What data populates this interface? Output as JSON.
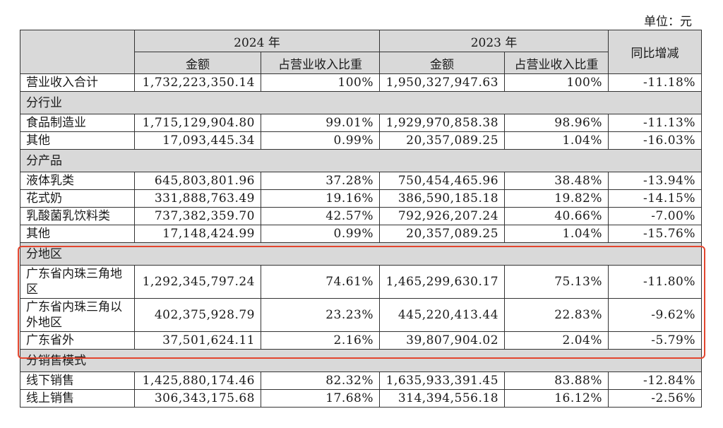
{
  "unit": "单位：元",
  "header": {
    "year_2024": "2024 年",
    "year_2023": "2023 年",
    "amount": "金额",
    "ratio": "占营业收入比重",
    "yoy": "同比增减"
  },
  "rows": [
    {
      "type": "data",
      "label": "营业收入合计",
      "a24": "1,732,223,350.14",
      "r24": "100%",
      "a23": "1,950,327,947.63",
      "r23": "100%",
      "yoy": "-11.18%"
    },
    {
      "type": "section",
      "label": "分行业"
    },
    {
      "type": "data",
      "label": "食品制造业",
      "a24": "1,715,129,904.80",
      "r24": "99.01%",
      "a23": "1,929,970,858.38",
      "r23": "98.96%",
      "yoy": "-11.13%"
    },
    {
      "type": "data",
      "label": "其他",
      "a24": "17,093,445.34",
      "r24": "0.99%",
      "a23": "20,357,089.25",
      "r23": "1.04%",
      "yoy": "-16.03%"
    },
    {
      "type": "section",
      "label": "分产品"
    },
    {
      "type": "data",
      "label": "液体乳类",
      "a24": "645,803,801.96",
      "r24": "37.28%",
      "a23": "750,454,465.96",
      "r23": "38.48%",
      "yoy": "-13.94%"
    },
    {
      "type": "data",
      "label": "花式奶",
      "a24": "331,888,763.49",
      "r24": "19.16%",
      "a23": "386,590,185.18",
      "r23": "19.82%",
      "yoy": "-14.15%"
    },
    {
      "type": "data",
      "label": "乳酸菌乳饮料类",
      "a24": "737,382,359.70",
      "r24": "42.57%",
      "a23": "792,926,207.24",
      "r23": "40.66%",
      "yoy": "-7.00%"
    },
    {
      "type": "data",
      "label": "其他",
      "a24": "17,148,424.99",
      "r24": "0.99%",
      "a23": "20,357,089.25",
      "r23": "1.04%",
      "yoy": "-15.76%"
    },
    {
      "type": "section",
      "label": "分地区"
    },
    {
      "type": "data",
      "tall": true,
      "label": "广东省内珠三角地区",
      "a24": "1,292,345,797.24",
      "r24": "74.61%",
      "a23": "1,465,299,630.17",
      "r23": "75.13%",
      "yoy": "-11.80%"
    },
    {
      "type": "data",
      "tall": true,
      "label": "广东省内珠三角以外地区",
      "a24": "402,375,928.79",
      "r24": "23.23%",
      "a23": "445,220,413.44",
      "r23": "22.83%",
      "yoy": "-9.62%"
    },
    {
      "type": "data",
      "label": "广东省外",
      "a24": "37,501,624.11",
      "r24": "2.16%",
      "a23": "39,807,904.02",
      "r23": "2.04%",
      "yoy": "-5.79%"
    },
    {
      "type": "section",
      "label": "分销售模式"
    },
    {
      "type": "data",
      "label": "线下销售",
      "a24": "1,425,880,174.46",
      "r24": "82.32%",
      "a23": "1,635,933,391.45",
      "r23": "83.88%",
      "yoy": "-12.84%"
    },
    {
      "type": "data",
      "label": "线上销售",
      "a24": "306,343,175.68",
      "r24": "17.68%",
      "a23": "314,394,556.18",
      "r23": "16.12%",
      "yoy": "-2.56%"
    }
  ]
}
